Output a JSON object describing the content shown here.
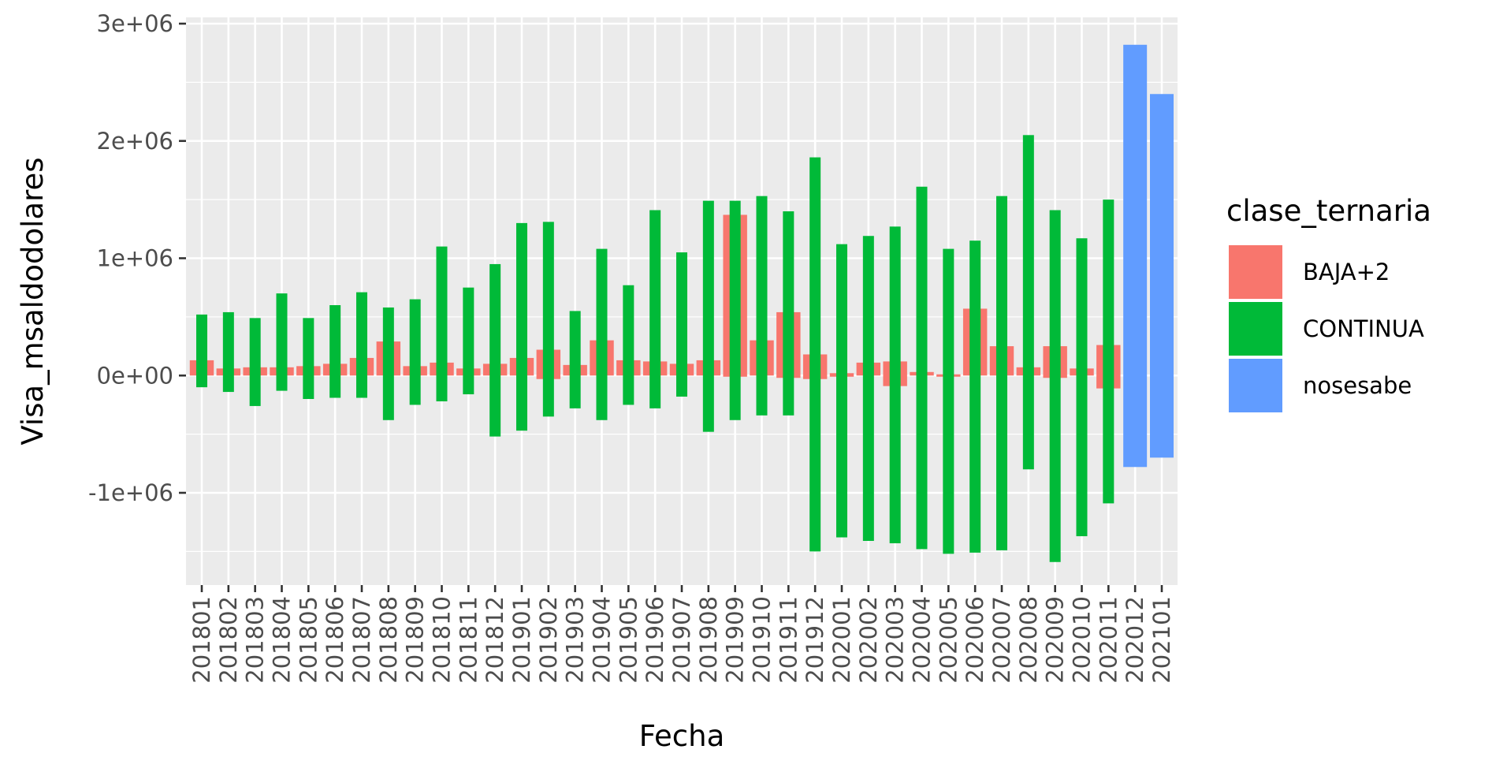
{
  "chart_data": {
    "type": "bar",
    "xlabel": "Fecha",
    "ylabel": "Visa_msaldodolares",
    "ylim": [
      -1800000,
      3000000
    ],
    "yticks": [
      -1000000,
      0,
      1000000,
      2000000,
      3000000
    ],
    "ytick_labels": [
      "-1e+06",
      "0e+00",
      "1e+06",
      "2e+06",
      "3e+06"
    ],
    "categories": [
      "201801",
      "201802",
      "201803",
      "201804",
      "201805",
      "201806",
      "201807",
      "201808",
      "201809",
      "201810",
      "201811",
      "201812",
      "201901",
      "201902",
      "201903",
      "201904",
      "201905",
      "201906",
      "201907",
      "201908",
      "201909",
      "201910",
      "201911",
      "201912",
      "202001",
      "202002",
      "202003",
      "202004",
      "202005",
      "202006",
      "202007",
      "202008",
      "202009",
      "202010",
      "202011",
      "202012",
      "202101"
    ],
    "legend": {
      "title": "clase_ternaria",
      "position": "right",
      "entries": [
        {
          "label": "BAJA+2",
          "color": "#F8766D"
        },
        {
          "label": "CONTINUA",
          "color": "#00BA38"
        },
        {
          "label": "nosesabe",
          "color": "#619CFF"
        }
      ]
    },
    "series": [
      {
        "name": "BAJA+2",
        "color": "#F8766D",
        "ranges": [
          [
            0,
            130000
          ],
          [
            0,
            60000
          ],
          [
            0,
            70000
          ],
          [
            0,
            70000
          ],
          [
            0,
            80000
          ],
          [
            0,
            100000
          ],
          [
            0,
            150000
          ],
          [
            0,
            290000
          ],
          [
            0,
            80000
          ],
          [
            0,
            110000
          ],
          [
            0,
            60000
          ],
          [
            0,
            100000
          ],
          [
            0,
            150000
          ],
          [
            -30000,
            220000
          ],
          [
            0,
            90000
          ],
          [
            0,
            300000
          ],
          [
            0,
            130000
          ],
          [
            0,
            120000
          ],
          [
            0,
            100000
          ],
          [
            0,
            130000
          ],
          [
            -10000,
            1370000
          ],
          [
            0,
            300000
          ],
          [
            -20000,
            540000
          ],
          [
            -30000,
            180000
          ],
          [
            -10000,
            20000
          ],
          [
            0,
            110000
          ],
          [
            -90000,
            120000
          ],
          [
            0,
            30000
          ],
          [
            -10000,
            10000
          ],
          [
            0,
            570000
          ],
          [
            0,
            250000
          ],
          [
            0,
            70000
          ],
          [
            -20000,
            250000
          ],
          [
            0,
            60000
          ],
          [
            -110000,
            260000
          ],
          null,
          null
        ]
      },
      {
        "name": "CONTINUA",
        "color": "#00BA38",
        "ranges": [
          [
            -100000,
            520000
          ],
          [
            -140000,
            540000
          ],
          [
            -260000,
            490000
          ],
          [
            -130000,
            700000
          ],
          [
            -200000,
            490000
          ],
          [
            -190000,
            600000
          ],
          [
            -190000,
            710000
          ],
          [
            -380000,
            580000
          ],
          [
            -250000,
            650000
          ],
          [
            -220000,
            1100000
          ],
          [
            -160000,
            750000
          ],
          [
            -520000,
            950000
          ],
          [
            -470000,
            1300000
          ],
          [
            -350000,
            1310000
          ],
          [
            -280000,
            550000
          ],
          [
            -380000,
            1080000
          ],
          [
            -250000,
            770000
          ],
          [
            -280000,
            1410000
          ],
          [
            -180000,
            1050000
          ],
          [
            -480000,
            1490000
          ],
          [
            -380000,
            1490000
          ],
          [
            -340000,
            1530000
          ],
          [
            -340000,
            1400000
          ],
          [
            -1500000,
            1860000
          ],
          [
            -1380000,
            1120000
          ],
          [
            -1410000,
            1190000
          ],
          [
            -1430000,
            1270000
          ],
          [
            -1480000,
            1610000
          ],
          [
            -1520000,
            1080000
          ],
          [
            -1510000,
            1150000
          ],
          [
            -1490000,
            1530000
          ],
          [
            -800000,
            2050000
          ],
          [
            -1590000,
            1410000
          ],
          [
            -1370000,
            1170000
          ],
          [
            -1090000,
            1500000
          ],
          null,
          null
        ]
      },
      {
        "name": "nosesabe",
        "color": "#619CFF",
        "ranges": [
          null,
          null,
          null,
          null,
          null,
          null,
          null,
          null,
          null,
          null,
          null,
          null,
          null,
          null,
          null,
          null,
          null,
          null,
          null,
          null,
          null,
          null,
          null,
          null,
          null,
          null,
          null,
          null,
          null,
          null,
          null,
          null,
          null,
          null,
          null,
          [
            -780000,
            2820000
          ],
          [
            -700000,
            2400000
          ]
        ]
      }
    ]
  }
}
